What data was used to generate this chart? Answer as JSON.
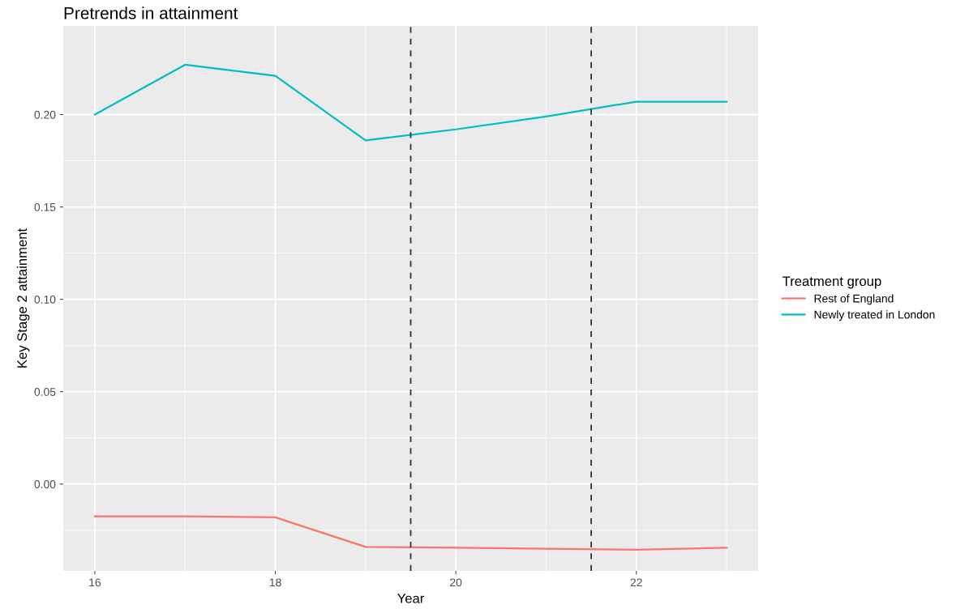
{
  "chart_data": {
    "type": "line",
    "title": "Pretrends in attainment",
    "xlabel": "Year",
    "ylabel": "Key Stage 2 attainment",
    "legend_title": "Treatment group",
    "x": [
      16,
      17,
      18,
      19,
      20,
      21,
      22,
      23
    ],
    "series": [
      {
        "name": "Rest of England",
        "color": "#f8766d",
        "values": [
          -0.0175,
          -0.0175,
          -0.018,
          -0.034,
          -0.0345,
          -0.035,
          -0.0355,
          -0.0345
        ]
      },
      {
        "name": "Newly treated in London",
        "color": "#00bfc4",
        "values": [
          0.2,
          0.227,
          0.221,
          0.186,
          0.192,
          0.199,
          0.207,
          0.207
        ]
      }
    ],
    "ref_lines": [
      {
        "axis": "x",
        "value": 19.5,
        "color": "#333333",
        "line_style": "dashed"
      },
      {
        "axis": "x",
        "value": 21.5,
        "color": "#333333",
        "line_style": "dashed"
      }
    ],
    "xlim": [
      15.65,
      23.35
    ],
    "ylim": [
      -0.047,
      0.248
    ],
    "xticks": [
      16,
      18,
      20,
      22
    ],
    "yticks": [
      {
        "value": 0,
        "label": "0.00"
      },
      {
        "value": 0.05,
        "label": "0.05"
      },
      {
        "value": 0.1,
        "label": "0.10"
      },
      {
        "value": 0.15,
        "label": "0.15"
      },
      {
        "value": 0.2,
        "label": "0.20"
      }
    ],
    "grid": true,
    "legend": "right",
    "line_style": "solid",
    "marker": "none"
  }
}
